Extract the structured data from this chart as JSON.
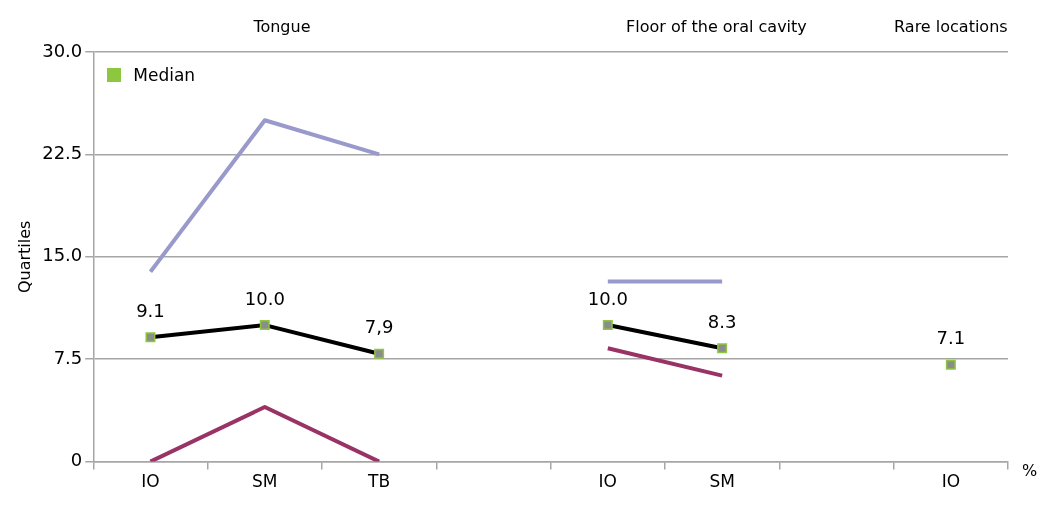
{
  "chart_data": {
    "type": "line",
    "ylabel": "Quartiles",
    "xlabel": "%",
    "annotations": [
      "Tongue",
      "Floor of the oral cavity",
      "Rare locations"
    ],
    "categories": [
      "IO",
      "SM",
      "TB",
      null,
      "IO",
      "SM",
      null,
      "IO"
    ],
    "series": [
      {
        "color": "#9999cc",
        "values": [
          13.9,
          25.0,
          22.5,
          null,
          13.2,
          13.2,
          null,
          null
        ]
      },
      {
        "name": "Median",
        "color": "#8dc63f",
        "marker": "square",
        "values": [
          9.1,
          10.0,
          7.9,
          null,
          10.0,
          8.3,
          null,
          7.1
        ],
        "value_labels": [
          "9.1",
          "10.0",
          "7,9",
          null,
          "10.0",
          "8.3",
          null,
          "7.1"
        ]
      },
      {
        "color": "#993366",
        "values": [
          0,
          4.0,
          0,
          null,
          8.3,
          6.3,
          null,
          null
        ]
      }
    ],
    "ylim": [
      0,
      30
    ],
    "yticks": [
      0,
      {
        "value": 7.5,
        "label": "7.5"
      },
      {
        "value": 15,
        "label": "15.0"
      },
      {
        "value": 22.5,
        "label": "22.5"
      },
      {
        "value": 30,
        "label": "30.0"
      }
    ],
    "grid": "y",
    "legend": "top left",
    "marker": "none"
  }
}
